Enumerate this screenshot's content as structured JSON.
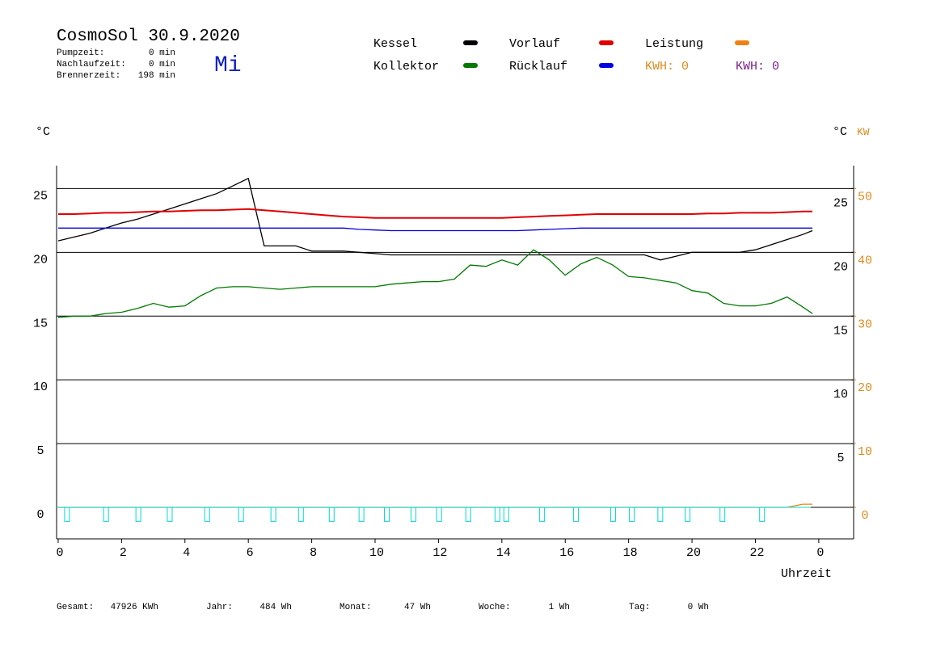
{
  "chart_data": {
    "type": "line",
    "title": "CosmoSol 30.9.2020",
    "weekday": "Mi",
    "info": [
      [
        "Pumpzeit:",
        "0 min"
      ],
      [
        "Nachlaufzeit:",
        "0 min"
      ],
      [
        "Brennerzeit:",
        "198 min"
      ]
    ],
    "kwh_labels": [
      {
        "text": "KWH: 0",
        "color": "#e08a1e"
      },
      {
        "text": "KWH: 0",
        "color": "#7a1f8a"
      }
    ],
    "y_label": "°C",
    "y2_label_c": "°C",
    "y2_label": "KW",
    "x_label": "Uhrzeit",
    "footer": [
      [
        "Gesamt:",
        "47926 KWh"
      ],
      [
        "Jahr:",
        "484 Wh"
      ],
      [
        "Monat:",
        "47 Wh"
      ],
      [
        "Woche:",
        "1 Wh"
      ],
      [
        "Tag:",
        "0 Wh"
      ]
    ],
    "x": [
      0,
      0.5,
      1,
      1.5,
      2,
      2.5,
      3,
      3.5,
      4,
      4.5,
      5,
      5.5,
      6,
      6.5,
      7,
      7.5,
      8,
      8.5,
      9,
      9.5,
      10,
      10.5,
      11,
      11.5,
      12,
      12.5,
      13,
      13.5,
      14,
      14.5,
      15,
      15.5,
      16,
      16.5,
      17,
      17.5,
      18,
      18.5,
      19,
      19.5,
      20,
      20.5,
      21,
      21.5,
      22,
      22.5,
      23,
      23.5,
      23.8
    ],
    "xlim": [
      -0.05,
      25.1
    ],
    "xticks": [
      0,
      2,
      4,
      6,
      8,
      10,
      12,
      14,
      16,
      18,
      20,
      22,
      {
        "value": 24,
        "label": "0"
      }
    ],
    "ylim": [
      -2.47,
      26.8
    ],
    "yticks": [
      0,
      5,
      10,
      15,
      20,
      25
    ],
    "yticks_right": [
      5,
      10,
      15,
      20,
      25
    ],
    "y2lim": [
      -4.94,
      53.6
    ],
    "y2ticks": [
      0,
      10,
      20,
      30,
      40,
      50
    ],
    "y2color": "#e08a1e",
    "grid": true,
    "series": [
      {
        "name": "Kessel",
        "color": "#000000",
        "values": [
          20.9,
          21.2,
          21.5,
          21.9,
          22.3,
          22.6,
          23.0,
          23.4,
          23.8,
          24.2,
          24.6,
          25.2,
          25.8,
          20.5,
          20.5,
          20.5,
          20.1,
          20.1,
          20.1,
          20.0,
          19.9,
          19.8,
          19.8,
          19.8,
          19.8,
          19.8,
          19.8,
          19.8,
          19.8,
          19.8,
          19.8,
          19.8,
          19.8,
          19.8,
          19.8,
          19.8,
          19.8,
          19.8,
          19.4,
          19.7,
          20.0,
          20.0,
          20.0,
          20.0,
          20.2,
          20.6,
          21.0,
          21.4,
          21.7
        ]
      },
      {
        "name": "Kollektor",
        "color": "#007a00",
        "values": [
          14.9,
          15.0,
          15.0,
          15.2,
          15.3,
          15.6,
          16.0,
          15.7,
          15.8,
          16.6,
          17.2,
          17.3,
          17.3,
          17.2,
          17.1,
          17.2,
          17.3,
          17.3,
          17.3,
          17.3,
          17.3,
          17.5,
          17.6,
          17.7,
          17.7,
          17.9,
          19.0,
          18.9,
          19.4,
          19.0,
          20.2,
          19.4,
          18.2,
          19.1,
          19.6,
          19.0,
          18.1,
          18.0,
          17.8,
          17.6,
          17.0,
          16.8,
          16.0,
          15.8,
          15.8,
          16.0,
          16.5,
          15.7,
          15.2
        ]
      },
      {
        "name": "Vorlauf",
        "color": "#e00000",
        "values": [
          23.0,
          23.0,
          23.05,
          23.1,
          23.1,
          23.15,
          23.2,
          23.2,
          23.25,
          23.3,
          23.3,
          23.35,
          23.4,
          23.3,
          23.2,
          23.1,
          23.0,
          22.9,
          22.8,
          22.75,
          22.7,
          22.7,
          22.7,
          22.7,
          22.7,
          22.7,
          22.7,
          22.7,
          22.7,
          22.75,
          22.8,
          22.85,
          22.9,
          22.95,
          23.0,
          23.0,
          23.0,
          23.0,
          23.0,
          23.0,
          23.0,
          23.05,
          23.05,
          23.1,
          23.1,
          23.1,
          23.15,
          23.2,
          23.2
        ]
      },
      {
        "name": "Rücklauf",
        "color": "#0000e0",
        "values": [
          21.9,
          21.9,
          21.9,
          21.9,
          21.9,
          21.9,
          21.9,
          21.9,
          21.9,
          21.9,
          21.9,
          21.9,
          21.9,
          21.9,
          21.9,
          21.9,
          21.9,
          21.9,
          21.9,
          21.8,
          21.75,
          21.7,
          21.7,
          21.7,
          21.7,
          21.7,
          21.7,
          21.7,
          21.7,
          21.7,
          21.75,
          21.8,
          21.85,
          21.9,
          21.9,
          21.9,
          21.9,
          21.9,
          21.9,
          21.9,
          21.9,
          21.9,
          21.9,
          21.9,
          21.9,
          21.9,
          21.9,
          21.9,
          21.9
        ]
      },
      {
        "name": "Leistung",
        "color": "#f08010",
        "axis": "y2",
        "values": [
          0,
          0,
          0,
          0,
          0,
          0,
          0,
          0,
          0,
          0,
          0,
          0,
          0,
          0,
          0,
          0,
          0,
          0,
          0,
          0,
          0,
          0,
          0,
          0,
          0,
          0,
          0,
          0,
          0,
          0,
          0,
          0,
          0,
          0,
          0,
          0,
          0,
          0,
          0,
          0,
          0,
          0,
          0,
          0,
          0,
          0,
          0,
          0.5,
          0.5
        ]
      },
      {
        "color": "#00d8d8",
        "pulse": true,
        "x": [
          0.28,
          1.51,
          2.53,
          3.52,
          4.7,
          5.77,
          6.79,
          7.66,
          8.63,
          9.57,
          10.37,
          11.21,
          12.02,
          12.94,
          13.86,
          14.14,
          15.27,
          16.34,
          17.51,
          18.1,
          19.0,
          19.86,
          20.96,
          22.21
        ],
        "values": [
          -1.1,
          -1.1,
          -1.1,
          -1.1,
          -1.1,
          -1.1,
          -1.1,
          -1.1,
          -1.1,
          -1.1,
          -1.1,
          -1.1,
          -1.1,
          -1.1,
          -1.1,
          -1.1,
          -1.1,
          -1.1,
          -1.1,
          -1.1,
          -1.1,
          -1.1,
          -1.1,
          -1.1
        ]
      }
    ]
  }
}
